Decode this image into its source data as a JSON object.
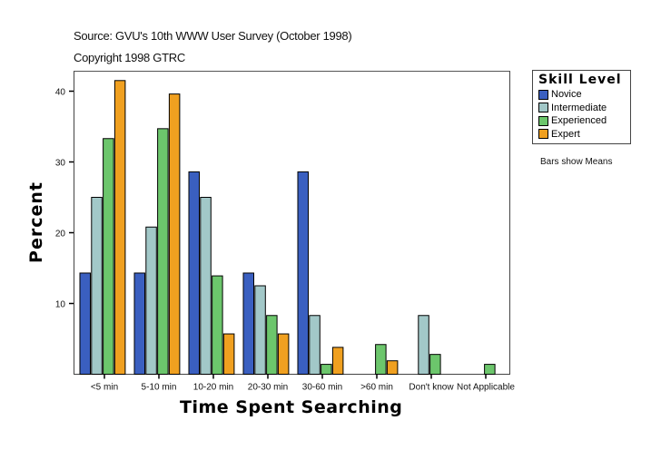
{
  "header": {
    "source": "Source: GVU's 10th WWW User Survey (October 1998)",
    "copyright": "Copyright 1998 GTRC"
  },
  "legend": {
    "title": "Skill Level",
    "note": "Bars show Means"
  },
  "chart_data": {
    "type": "bar",
    "title": "Source: GVU's 10th WWW User Survey (October 1998)",
    "subtitle": "Copyright 1998 GTRC",
    "xlabel": "Time Spent Searching",
    "ylabel": "Percent",
    "ylim": [
      0,
      43
    ],
    "yticks": [
      10,
      20,
      30,
      40
    ],
    "grid": false,
    "legend_position": "right",
    "legend_title": "Skill Level",
    "annotation": "Bars show Means",
    "categories": [
      "<5 min",
      "5-10 min",
      "10-20 min",
      "20-30 min",
      "30-60 min",
      ">60 min",
      "Don't know",
      "Not Applicable"
    ],
    "series": [
      {
        "name": "Novice",
        "color": "#3a5fc0",
        "values": [
          14.3,
          14.3,
          28.6,
          14.3,
          28.6,
          0,
          0,
          0
        ]
      },
      {
        "name": "Intermediate",
        "color": "#a2c8c8",
        "values": [
          25.0,
          20.8,
          25.0,
          12.5,
          8.3,
          0,
          8.3,
          0
        ]
      },
      {
        "name": "Experienced",
        "color": "#6cc66c",
        "values": [
          33.3,
          34.7,
          13.9,
          8.3,
          1.4,
          4.2,
          2.8,
          1.4
        ]
      },
      {
        "name": "Expert",
        "color": "#f0a020",
        "values": [
          41.5,
          39.6,
          5.7,
          5.7,
          3.8,
          1.9,
          0,
          0
        ]
      }
    ]
  }
}
